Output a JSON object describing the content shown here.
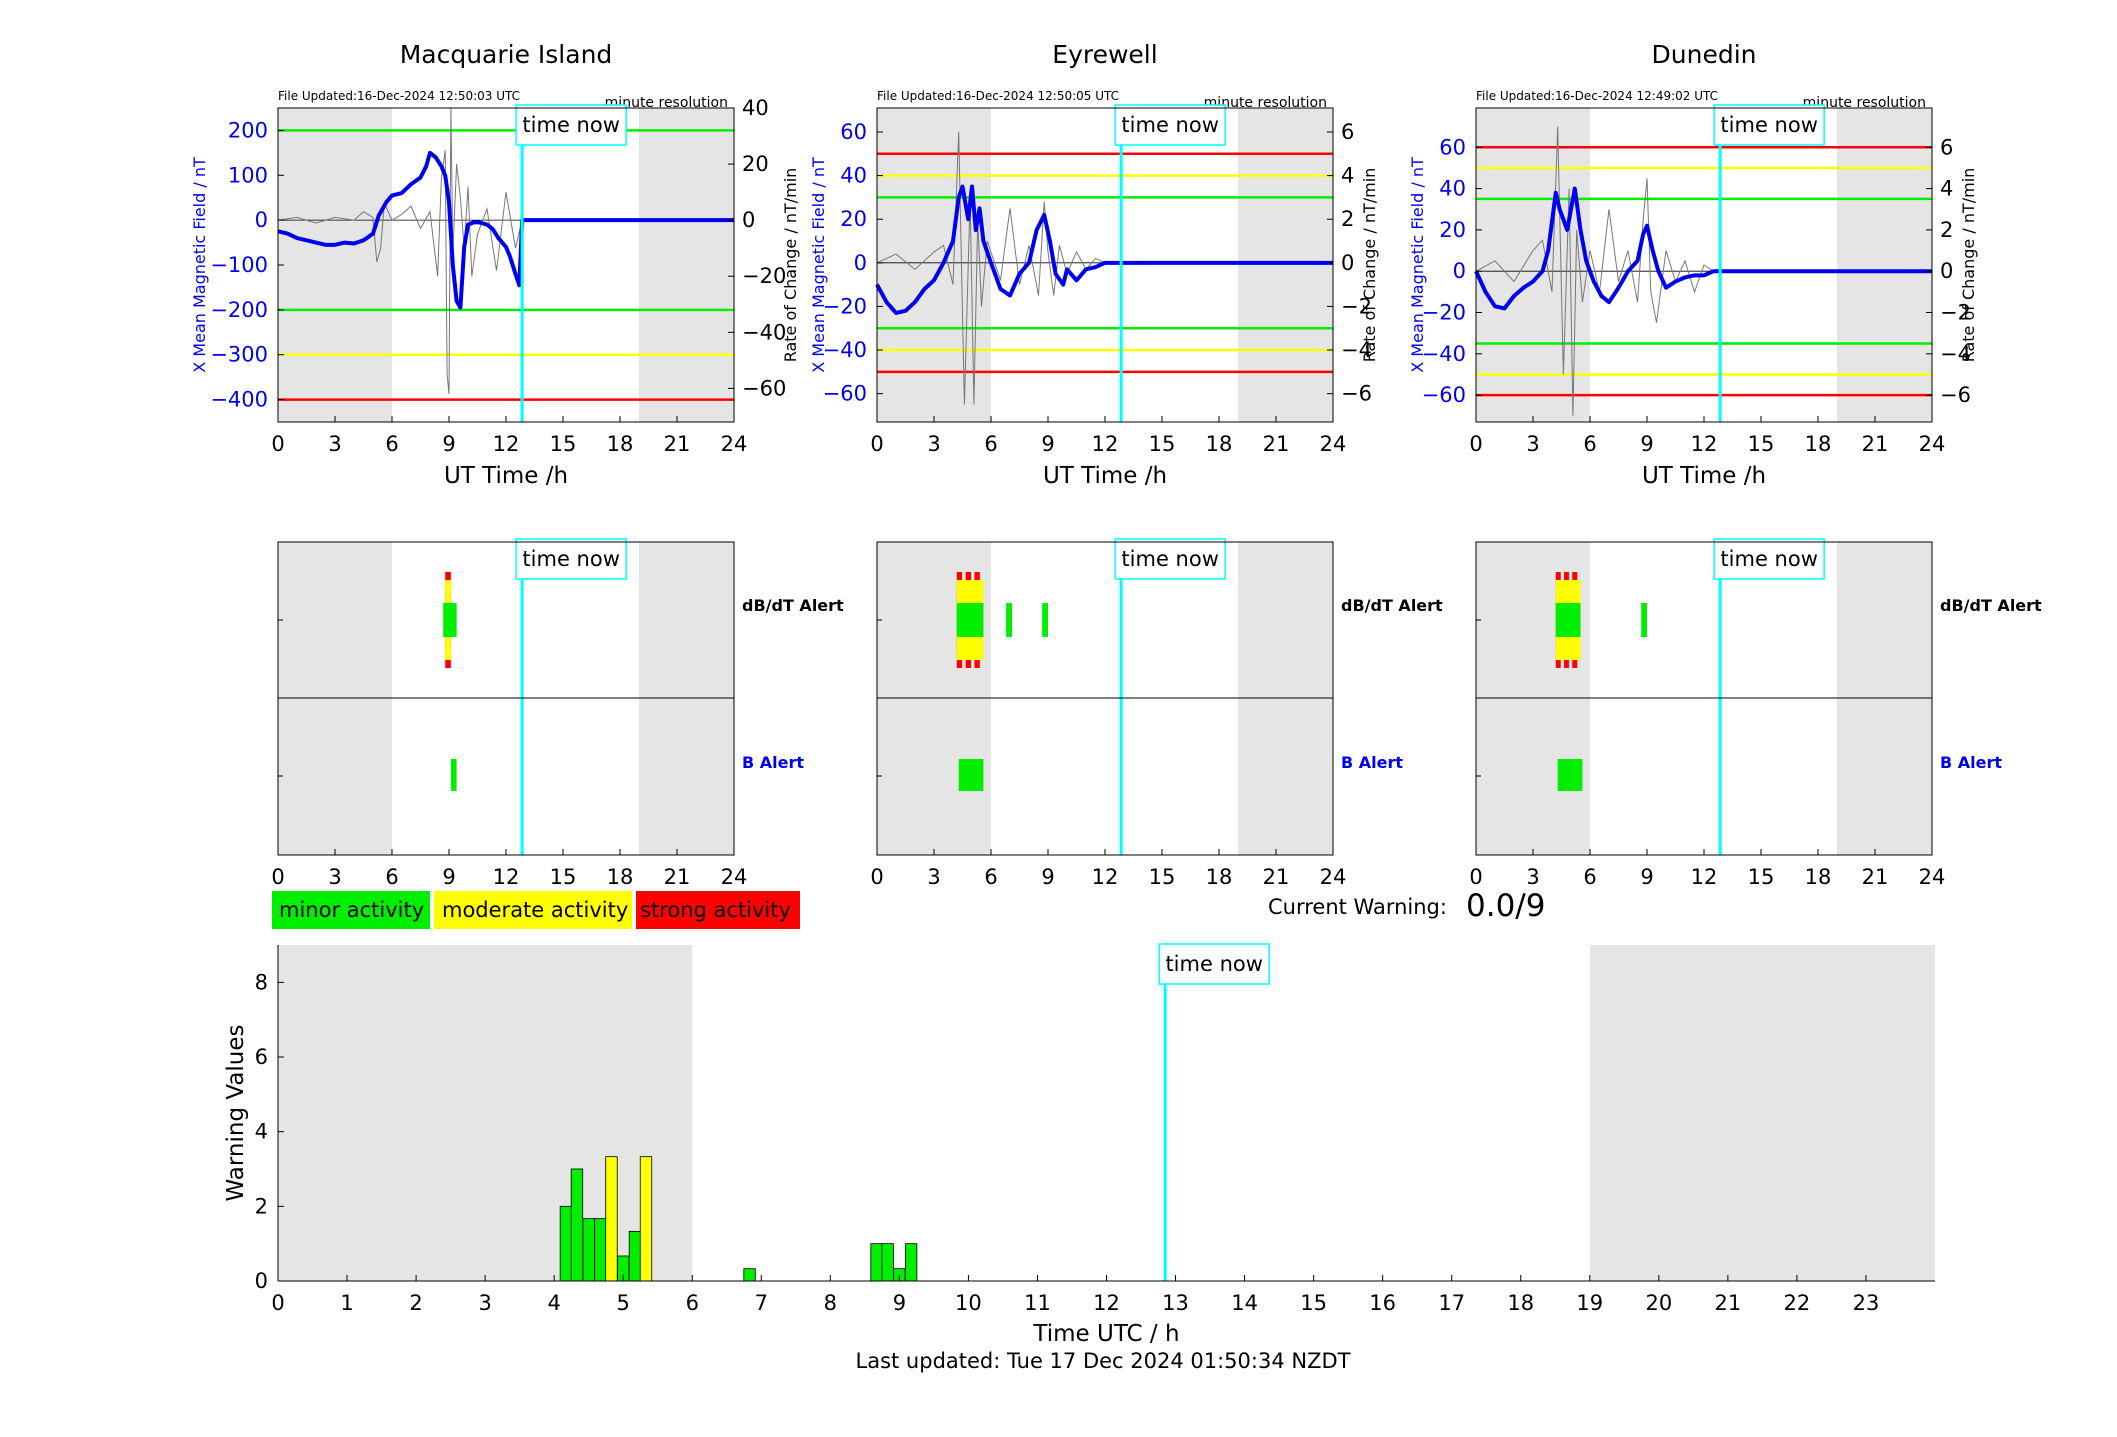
{
  "colors": {
    "field": "#0000ee",
    "rate": "#777777",
    "time_now": "#00ffff",
    "minor": "#00ee00",
    "moderate": "#ffff00",
    "strong": "#ff0000",
    "night_shade": "#e5e5e5"
  },
  "time_now_label": "time now",
  "legend": {
    "minor": "minor activity",
    "moderate": "moderate activity",
    "strong": "strong activity"
  },
  "current_warning": {
    "label": "Current Warning:",
    "value": "0.0/9"
  },
  "last_updated": "Last updated: Tue 17 Dec 2024 01:50:34 NZDT",
  "alert_rows": {
    "dbdt": "dB/dT Alert",
    "b": "B Alert"
  },
  "stations": [
    {
      "name": "Macquarie Island",
      "file_updated": "File Updated:16-Dec-2024 12:50:03 UTC",
      "resolution": "minute resolution",
      "chart_data": {
        "type": "line",
        "xlabel": "UT Time /h",
        "ylabel": "X Mean Magnetic Field / nT",
        "y2label": "Rate of Change / nT/min",
        "xlim": [
          0,
          24
        ],
        "xticks": [
          0,
          3,
          6,
          9,
          12,
          15,
          18,
          21,
          24
        ],
        "ylim": [
          -450,
          250
        ],
        "yticks": [
          -400,
          -300,
          -200,
          -100,
          0,
          100,
          200
        ],
        "y2lim": [
          -72,
          40
        ],
        "y2ticks": [
          -60,
          -40,
          -20,
          0,
          20,
          40
        ],
        "night_shading": [
          [
            0,
            6
          ],
          [
            19,
            24
          ]
        ],
        "time_now": 12.85,
        "thresholds": [
          {
            "level": 200,
            "color": "green"
          },
          {
            "level": -200,
            "color": "green"
          },
          {
            "level": -300,
            "color": "yellow"
          },
          {
            "level": -400,
            "color": "red"
          }
        ],
        "field_series": {
          "x": [
            0,
            0.5,
            1,
            1.5,
            2,
            2.5,
            3,
            3.5,
            4,
            4.5,
            5,
            5.3,
            5.7,
            6,
            6.5,
            7,
            7.5,
            7.8,
            8,
            8.3,
            8.6,
            8.8,
            9,
            9.2,
            9.4,
            9.6,
            9.8,
            10,
            10.3,
            10.6,
            11,
            11.3,
            11.6,
            12,
            12.2,
            12.5,
            12.7,
            12.85,
            24
          ],
          "y": [
            -25,
            -30,
            -40,
            -45,
            -50,
            -55,
            -55,
            -50,
            -52,
            -45,
            -30,
            10,
            40,
            55,
            60,
            80,
            95,
            120,
            150,
            140,
            120,
            100,
            40,
            -100,
            -180,
            -195,
            -60,
            -10,
            -5,
            -5,
            -10,
            -20,
            -40,
            -60,
            -80,
            -120,
            -145,
            0,
            0
          ]
        },
        "rate_series": {
          "x": [
            0,
            1,
            2,
            3,
            4,
            4.5,
            5,
            5.2,
            5.4,
            5.6,
            6,
            6.5,
            7,
            7.5,
            8,
            8.4,
            8.6,
            8.8,
            8.9,
            9,
            9.1,
            9.2,
            9.4,
            9.6,
            9.8,
            10,
            10.2,
            10.5,
            11,
            11.5,
            12,
            12.5,
            12.85
          ],
          "y": [
            0,
            1,
            -1,
            1,
            0,
            3,
            1,
            -15,
            -10,
            6,
            0,
            2,
            5,
            -3,
            3,
            -20,
            15,
            25,
            -55,
            -62,
            40,
            -12,
            20,
            8,
            -10,
            12,
            -20,
            -5,
            4,
            -18,
            10,
            -10,
            0
          ]
        }
      },
      "alert_data": {
        "dbdt": [
          {
            "start": 8.8,
            "end": 9.1,
            "level": "strong"
          },
          {
            "start": 8.8,
            "end": 9.1,
            "level": "moderate"
          },
          {
            "start": 8.7,
            "end": 9.4,
            "level": "minor"
          }
        ],
        "b": [
          {
            "start": 9.1,
            "end": 9.4,
            "level": "minor"
          }
        ]
      }
    },
    {
      "name": "Eyrewell",
      "file_updated": "File Updated:16-Dec-2024 12:50:05 UTC",
      "resolution": "minute resolution",
      "chart_data": {
        "type": "line",
        "xlabel": "UT Time /h",
        "ylabel": "X Mean Magnetic Field / nT",
        "y2label": "Rate of Change / nT/min",
        "xlim": [
          0,
          24
        ],
        "xticks": [
          0,
          3,
          6,
          9,
          12,
          15,
          18,
          21,
          24
        ],
        "ylim": [
          -73,
          71
        ],
        "yticks": [
          -60,
          -40,
          -20,
          0,
          20,
          40,
          60
        ],
        "y2lim": [
          -7.3,
          7.1
        ],
        "y2ticks": [
          -6,
          -4,
          -2,
          0,
          2,
          4,
          6
        ],
        "night_shading": [
          [
            0,
            6
          ],
          [
            19,
            24
          ]
        ],
        "time_now": 12.85,
        "thresholds": [
          {
            "level": 50,
            "color": "red"
          },
          {
            "level": 40,
            "color": "yellow"
          },
          {
            "level": 30,
            "color": "green"
          },
          {
            "level": -30,
            "color": "green"
          },
          {
            "level": -40,
            "color": "yellow"
          },
          {
            "level": -50,
            "color": "red"
          }
        ],
        "field_series": {
          "x": [
            0,
            0.5,
            1,
            1.5,
            2,
            2.5,
            3,
            3.5,
            4,
            4.3,
            4.5,
            4.8,
            5,
            5.2,
            5.4,
            5.6,
            6,
            6.5,
            7,
            7.5,
            8,
            8.4,
            8.8,
            9.1,
            9.4,
            9.8,
            10,
            10.5,
            11,
            11.5,
            12,
            12.85,
            24
          ],
          "y": [
            -10,
            -18,
            -23,
            -22,
            -18,
            -12,
            -8,
            0,
            10,
            30,
            35,
            20,
            35,
            15,
            25,
            10,
            0,
            -12,
            -15,
            -5,
            0,
            15,
            22,
            10,
            -5,
            -10,
            -3,
            -8,
            -3,
            -2,
            0,
            0,
            0
          ]
        },
        "rate_series": {
          "x": [
            0,
            1,
            2,
            3,
            3.5,
            4,
            4.3,
            4.6,
            4.9,
            5.1,
            5.3,
            5.5,
            5.8,
            6.5,
            7,
            7.5,
            8,
            8.5,
            8.8,
            9,
            9.3,
            9.6,
            10,
            10.5,
            11,
            11.5,
            12
          ],
          "y": [
            0,
            0.4,
            -0.3,
            0.5,
            0.8,
            -1,
            6,
            -6.5,
            3,
            -6.5,
            2,
            -2,
            1,
            -0.8,
            2.5,
            -1,
            0.8,
            -1.5,
            2.8,
            0.5,
            -1.5,
            0.8,
            -0.5,
            0.5,
            -0.3,
            0.2,
            0
          ]
        }
      },
      "alert_data": {
        "dbdt": [
          {
            "start": 4.2,
            "end": 5.6,
            "level": "strong"
          },
          {
            "start": 4.2,
            "end": 5.6,
            "level": "moderate"
          },
          {
            "start": 4.2,
            "end": 5.6,
            "level": "minor"
          },
          {
            "start": 6.8,
            "end": 7.1,
            "level": "minor"
          },
          {
            "start": 8.7,
            "end": 9.0,
            "level": "minor"
          }
        ],
        "b": [
          {
            "start": 4.3,
            "end": 5.6,
            "level": "minor"
          }
        ]
      }
    },
    {
      "name": "Dunedin",
      "file_updated": "File Updated:16-Dec-2024 12:49:02 UTC",
      "resolution": "minute resolution",
      "chart_data": {
        "type": "line",
        "xlabel": "UT Time /h",
        "ylabel": "X Mean Magnetic Field / nT",
        "y2label": "Rate of Change / nT/min",
        "xlim": [
          0,
          24
        ],
        "xticks": [
          0,
          3,
          6,
          9,
          12,
          15,
          18,
          21,
          24
        ],
        "ylim": [
          -73,
          79
        ],
        "yticks": [
          -60,
          -40,
          -20,
          0,
          20,
          40,
          60
        ],
        "y2lim": [
          -7.3,
          7.9
        ],
        "y2ticks": [
          -6,
          -4,
          -2,
          0,
          2,
          4,
          6
        ],
        "night_shading": [
          [
            0,
            6
          ],
          [
            19,
            24
          ]
        ],
        "time_now": 12.85,
        "thresholds": [
          {
            "level": 60,
            "color": "red"
          },
          {
            "level": 50,
            "color": "yellow"
          },
          {
            "level": 35,
            "color": "green"
          },
          {
            "level": -35,
            "color": "green"
          },
          {
            "level": -50,
            "color": "yellow"
          },
          {
            "level": -60,
            "color": "red"
          }
        ],
        "field_series": {
          "x": [
            0,
            0.5,
            1,
            1.5,
            2,
            2.5,
            3,
            3.5,
            3.8,
            4.2,
            4.4,
            4.8,
            5,
            5.2,
            5.5,
            5.8,
            6.2,
            6.6,
            7,
            7.5,
            8,
            8.5,
            8.8,
            9,
            9.3,
            9.6,
            10,
            10.5,
            11,
            11.5,
            12,
            12.5,
            12.85,
            24
          ],
          "y": [
            0,
            -10,
            -17,
            -18,
            -12,
            -8,
            -5,
            0,
            10,
            38,
            30,
            20,
            30,
            40,
            20,
            5,
            -5,
            -12,
            -15,
            -8,
            0,
            5,
            18,
            22,
            10,
            0,
            -8,
            -5,
            -3,
            -2,
            -2,
            0,
            0,
            0
          ]
        },
        "rate_series": {
          "x": [
            0,
            1,
            2,
            3,
            3.5,
            4,
            4.3,
            4.6,
            4.9,
            5.1,
            5.3,
            5.6,
            6,
            6.5,
            7,
            7.5,
            8,
            8.5,
            8.8,
            9,
            9.2,
            9.5,
            10,
            10.5,
            11,
            11.5,
            12,
            12.5
          ],
          "y": [
            0,
            0.5,
            -0.5,
            1,
            1.5,
            -1,
            7,
            -5,
            4,
            -7,
            2,
            -1.5,
            1,
            -1,
            3,
            -0.5,
            1,
            -1.5,
            2.5,
            4.5,
            -1,
            -2.5,
            1,
            -0.5,
            0.5,
            -1,
            0.3,
            0
          ]
        }
      },
      "alert_data": {
        "dbdt": [
          {
            "start": 4.2,
            "end": 5.5,
            "level": "strong"
          },
          {
            "start": 4.2,
            "end": 5.5,
            "level": "moderate"
          },
          {
            "start": 4.2,
            "end": 5.5,
            "level": "minor"
          },
          {
            "start": 8.7,
            "end": 9.0,
            "level": "minor"
          }
        ],
        "b": [
          {
            "start": 4.3,
            "end": 5.6,
            "level": "minor"
          }
        ]
      }
    }
  ],
  "warning_chart": {
    "chart_data": {
      "type": "bar",
      "xlabel": "Time UTC / h",
      "ylabel": "Warning Values",
      "xlim": [
        0,
        24
      ],
      "xticks": [
        0,
        1,
        2,
        3,
        4,
        5,
        6,
        7,
        8,
        9,
        10,
        11,
        12,
        13,
        14,
        15,
        16,
        17,
        18,
        19,
        20,
        21,
        22,
        23
      ],
      "ylim": [
        0,
        9
      ],
      "yticks": [
        0,
        2,
        4,
        6,
        8
      ],
      "night_shading": [
        [
          0,
          6
        ],
        [
          19,
          24
        ]
      ],
      "time_now": 12.85,
      "bars": [
        {
          "x": 4.17,
          "value": 2.0,
          "level": "minor"
        },
        {
          "x": 4.33,
          "value": 3.0,
          "level": "minor"
        },
        {
          "x": 4.5,
          "value": 1.67,
          "level": "minor"
        },
        {
          "x": 4.67,
          "value": 1.67,
          "level": "minor"
        },
        {
          "x": 4.83,
          "value": 3.33,
          "level": "moderate"
        },
        {
          "x": 5.0,
          "value": 0.67,
          "level": "minor"
        },
        {
          "x": 5.17,
          "value": 1.33,
          "level": "minor"
        },
        {
          "x": 5.33,
          "value": 3.33,
          "level": "moderate"
        },
        {
          "x": 6.83,
          "value": 0.33,
          "level": "minor"
        },
        {
          "x": 8.67,
          "value": 1.0,
          "level": "minor"
        },
        {
          "x": 8.83,
          "value": 1.0,
          "level": "minor"
        },
        {
          "x": 9.0,
          "value": 0.33,
          "level": "minor"
        },
        {
          "x": 9.17,
          "value": 1.0,
          "level": "minor"
        }
      ]
    }
  }
}
